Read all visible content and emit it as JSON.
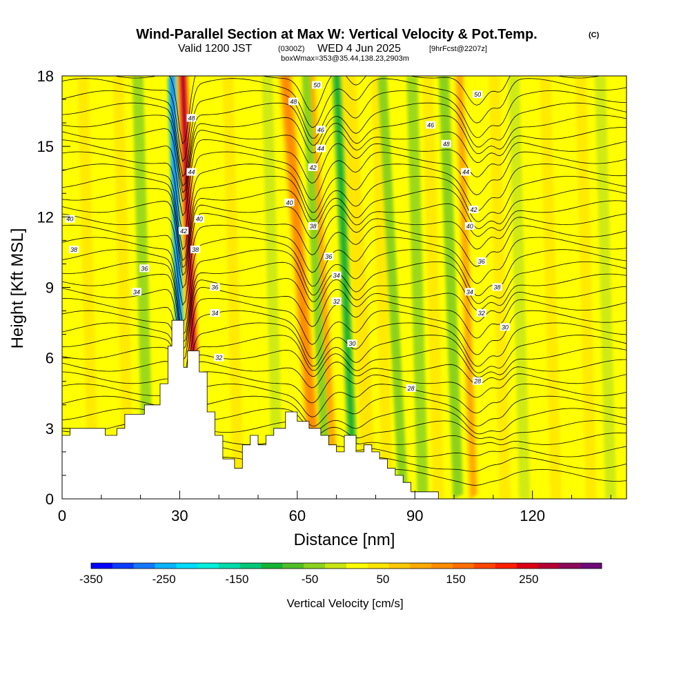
{
  "title": {
    "main": "Wind-Parallel Section at Max W: Vertical Velocity & Pot.Temp.",
    "copyright": "(C)",
    "valid_prefix": "Valid 1200 JST",
    "zulu": "(0300Z)",
    "date": "WED 4 Jun 2025",
    "forecast": "[9hrFcst@2207z]",
    "boxwmax": "boxWmax=353@35.44,138.23,2903m"
  },
  "chart_data": {
    "type": "heatmap",
    "xlabel": "Distance [nm]",
    "ylabel": "Height [Kft MSL]",
    "xlim": [
      0,
      144
    ],
    "ylim": [
      0,
      18
    ],
    "x_ticks": [
      "0",
      "30",
      "60",
      "90",
      "120"
    ],
    "y_ticks": [
      "0",
      "3",
      "6",
      "9",
      "12",
      "15",
      "18"
    ],
    "colorbar": {
      "label": "Vertical Velocity [cm/s]",
      "range": [
        -350,
        350
      ],
      "ticks": [
        "-350",
        "-250",
        "-150",
        "-50",
        "50",
        "150",
        "250"
      ],
      "colors": [
        "#0000ff",
        "#0a3cff",
        "#1478ff",
        "#0ab4ff",
        "#00dcff",
        "#00f0dc",
        "#00dcaa",
        "#00c878",
        "#14b432",
        "#50be28",
        "#8cd21e",
        "#c8e614",
        "#ffff00",
        "#ffe600",
        "#ffc800",
        "#ffaa00",
        "#ff8c00",
        "#ff6e00",
        "#ff4600",
        "#ff1e00",
        "#dc0014",
        "#b40032",
        "#8c0a5a",
        "#6e0a78"
      ]
    },
    "terrain_kft": [
      [
        0,
        2.7
      ],
      [
        2,
        2.7
      ],
      [
        2,
        3.0
      ],
      [
        11,
        3.0
      ],
      [
        11,
        2.7
      ],
      [
        14,
        2.7
      ],
      [
        14,
        3.0
      ],
      [
        16,
        3.0
      ],
      [
        16,
        3.6
      ],
      [
        21,
        3.6
      ],
      [
        21,
        4.0
      ],
      [
        25,
        4.0
      ],
      [
        25,
        4.9
      ],
      [
        27,
        4.9
      ],
      [
        27,
        6.5
      ],
      [
        28,
        6.5
      ],
      [
        28,
        7.6
      ],
      [
        31,
        7.6
      ],
      [
        31,
        5.6
      ],
      [
        32,
        5.6
      ],
      [
        32,
        6.3
      ],
      [
        35,
        6.3
      ],
      [
        35,
        5.4
      ],
      [
        37,
        5.4
      ],
      [
        37,
        3.7
      ],
      [
        39,
        3.7
      ],
      [
        39,
        2.7
      ],
      [
        41,
        2.7
      ],
      [
        41,
        1.7
      ],
      [
        44,
        1.7
      ],
      [
        44,
        1.3
      ],
      [
        46,
        1.3
      ],
      [
        46,
        2.3
      ],
      [
        48,
        2.3
      ],
      [
        48,
        2.7
      ],
      [
        50,
        2.7
      ],
      [
        50,
        2.3
      ],
      [
        52,
        2.3
      ],
      [
        52,
        2.7
      ],
      [
        54,
        2.7
      ],
      [
        54,
        3.0
      ],
      [
        57,
        3.0
      ],
      [
        57,
        3.7
      ],
      [
        60,
        3.7
      ],
      [
        60,
        3.3
      ],
      [
        63,
        3.3
      ],
      [
        63,
        3.0
      ],
      [
        66,
        3.0
      ],
      [
        66,
        2.7
      ],
      [
        68,
        2.7
      ],
      [
        68,
        2.3
      ],
      [
        70,
        2.3
      ],
      [
        70,
        2.0
      ],
      [
        72,
        2.0
      ],
      [
        72,
        2.7
      ],
      [
        75,
        2.7
      ],
      [
        75,
        2.0
      ],
      [
        77,
        2.0
      ],
      [
        77,
        2.3
      ],
      [
        79,
        2.3
      ],
      [
        79,
        2.0
      ],
      [
        81,
        2.0
      ],
      [
        81,
        1.7
      ],
      [
        83,
        1.7
      ],
      [
        83,
        1.3
      ],
      [
        85,
        1.3
      ],
      [
        85,
        1.0
      ],
      [
        87,
        1.0
      ],
      [
        87,
        0.7
      ],
      [
        89,
        0.7
      ],
      [
        89,
        0.3
      ],
      [
        96,
        0.3
      ],
      [
        96,
        0
      ],
      [
        144,
        0
      ]
    ],
    "updrafts": [
      {
        "x": 33.5,
        "tilt": -0.22,
        "w": 2.6,
        "cmps": 300
      },
      {
        "x": 64,
        "tilt": -0.45,
        "w": 3.5,
        "cmps": 150
      },
      {
        "x": 69,
        "tilt": -0.35,
        "w": 2.5,
        "cmps": 120
      },
      {
        "x": 105,
        "tilt": -0.2,
        "w": 2.2,
        "cmps": 110
      },
      {
        "x": 78,
        "tilt": -0.3,
        "w": 3,
        "cmps": 60
      }
    ],
    "downdrafts": [
      {
        "x": 30,
        "tilt": -0.18,
        "w": 1.8,
        "cmps": -320
      },
      {
        "x": 74,
        "tilt": -0.25,
        "w": 2.0,
        "cmps": -110
      },
      {
        "x": 67,
        "tilt": -0.3,
        "w": 1.6,
        "cmps": -80
      },
      {
        "x": 101,
        "tilt": -0.2,
        "w": 2.0,
        "cmps": -70
      },
      {
        "x": 87,
        "tilt": -0.3,
        "w": 1.8,
        "cmps": -50
      }
    ],
    "isentrope_labels": [
      {
        "text": "50",
        "x": 65,
        "y": 17.6
      },
      {
        "text": "50",
        "x": 106,
        "y": 17.2
      },
      {
        "text": "48",
        "x": 59,
        "y": 16.9
      },
      {
        "text": "48",
        "x": 33,
        "y": 16.2
      },
      {
        "text": "46",
        "x": 66,
        "y": 15.7
      },
      {
        "text": "46",
        "x": 94,
        "y": 15.9
      },
      {
        "text": "44",
        "x": 66,
        "y": 14.9
      },
      {
        "text": "48",
        "x": 98,
        "y": 15.1
      },
      {
        "text": "42",
        "x": 64,
        "y": 14.1
      },
      {
        "text": "44",
        "x": 33,
        "y": 13.9
      },
      {
        "text": "44",
        "x": 103,
        "y": 13.9
      },
      {
        "text": "40",
        "x": 58,
        "y": 12.6
      },
      {
        "text": "42",
        "x": 105,
        "y": 12.3
      },
      {
        "text": "40",
        "x": 2,
        "y": 11.9
      },
      {
        "text": "40",
        "x": 35,
        "y": 11.9
      },
      {
        "text": "38",
        "x": 64,
        "y": 11.6
      },
      {
        "text": "40",
        "x": 104,
        "y": 11.6
      },
      {
        "text": "42",
        "x": 31,
        "y": 11.4
      },
      {
        "text": "38",
        "x": 34,
        "y": 10.6
      },
      {
        "text": "38",
        "x": 3,
        "y": 10.6
      },
      {
        "text": "36",
        "x": 68,
        "y": 10.3
      },
      {
        "text": "36",
        "x": 107,
        "y": 10.1
      },
      {
        "text": "36",
        "x": 21,
        "y": 9.8
      },
      {
        "text": "34",
        "x": 70,
        "y": 9.5
      },
      {
        "text": "38",
        "x": 111,
        "y": 9.0
      },
      {
        "text": "36",
        "x": 39,
        "y": 9.0
      },
      {
        "text": "34",
        "x": 19,
        "y": 8.8
      },
      {
        "text": "34",
        "x": 104,
        "y": 8.8
      },
      {
        "text": "32",
        "x": 70,
        "y": 8.4
      },
      {
        "text": "34",
        "x": 39,
        "y": 7.9
      },
      {
        "text": "32",
        "x": 107,
        "y": 7.9
      },
      {
        "text": "30",
        "x": 113,
        "y": 7.3
      },
      {
        "text": "30",
        "x": 74,
        "y": 6.6
      },
      {
        "text": "32",
        "x": 40,
        "y": 6.0
      },
      {
        "text": "28",
        "x": 106,
        "y": 5.0
      },
      {
        "text": "28",
        "x": 89,
        "y": 4.7
      }
    ]
  }
}
